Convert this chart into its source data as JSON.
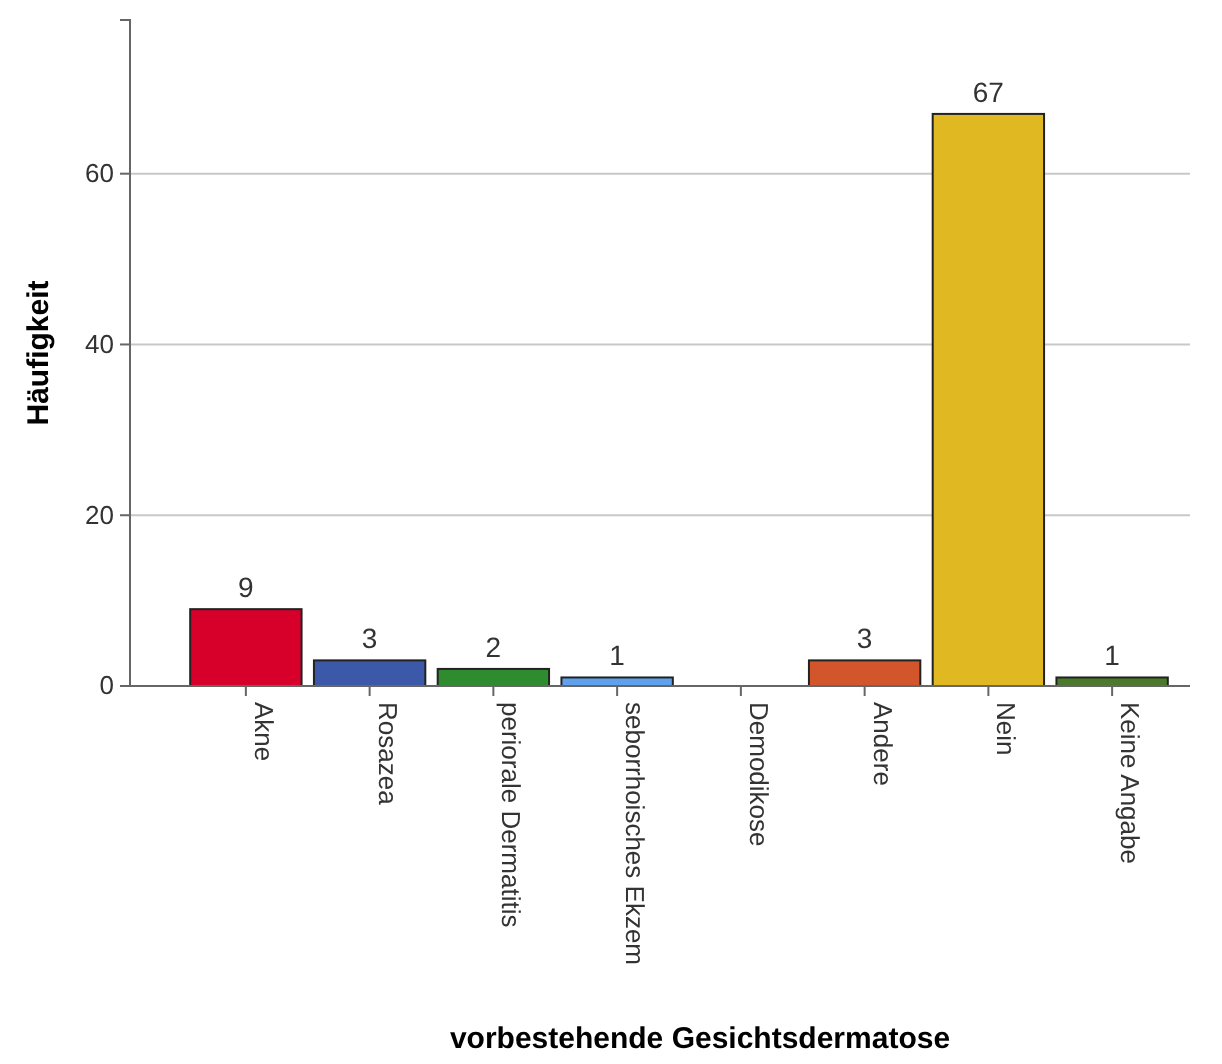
{
  "chart_data": {
    "type": "bar",
    "xlabel": "vorbestehende Gesichtsdermatose",
    "ylabel": "Häufigkeit",
    "categories": [
      "Akne",
      "Rosazea",
      "periorale Dermatitis",
      "seborrhoisches Ekzem",
      "Demodikose",
      "Andere",
      "Nein",
      "Keine Angabe"
    ],
    "values": [
      9,
      3,
      2,
      1,
      0,
      3,
      67,
      1
    ],
    "value_labels": [
      "9",
      "3",
      "2",
      "1",
      null,
      "3",
      "67",
      "1"
    ],
    "colors": [
      "#d6002a",
      "#3c58a8",
      "#2e8b2e",
      "#5ea2ee",
      "#8f5fb0",
      "#d2552c",
      "#e0b821",
      "#4c7a2c"
    ],
    "ylim": [
      0,
      78
    ],
    "yticks": [
      0,
      20,
      40,
      60
    ],
    "grid": "y"
  }
}
